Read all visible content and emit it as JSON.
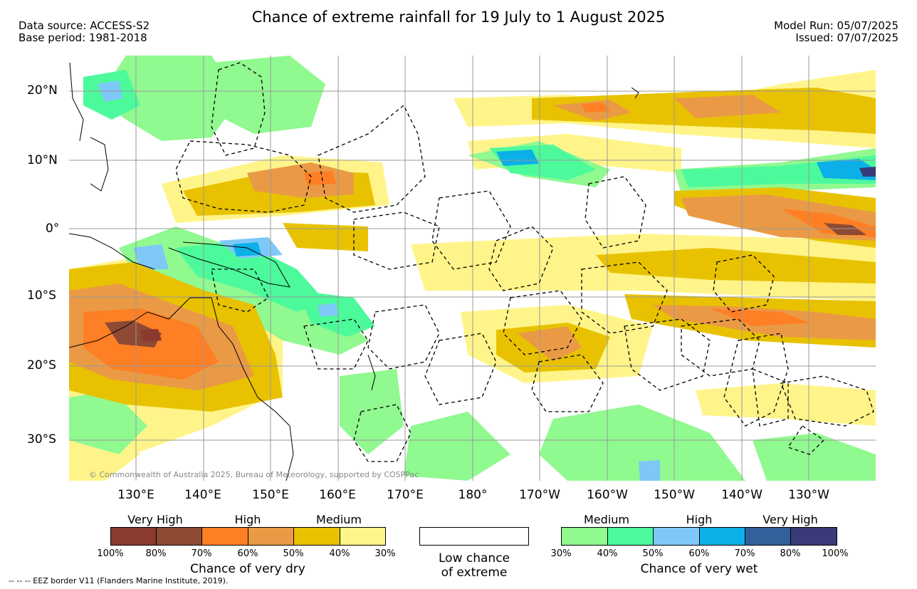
{
  "title": "Chance of extreme rainfall for 19 July to 1 August 2025",
  "header_left": {
    "source": "Data source: ACCESS-S2",
    "base": "Base period: 1981-2018"
  },
  "header_right": {
    "run": "Model Run: 05/07/2025",
    "issued": "Issued: 07/07/2025"
  },
  "map": {
    "lat_labels": [
      "20°N",
      "10°N",
      "0°",
      "10°S",
      "20°S",
      "30°S"
    ],
    "lon_labels": [
      "130°E",
      "140°E",
      "150°E",
      "160°E",
      "170°E",
      "180°",
      "170°W",
      "160°W",
      "150°W",
      "140°W",
      "130°W"
    ],
    "copyright": "© Commonwealth of Australia 2025, Bureau of Meteorology, supported by COSPPac"
  },
  "legend_dry": {
    "categories": [
      "Very High",
      "High",
      "Medium"
    ],
    "ticks": [
      "100%",
      "80%",
      "70%",
      "60%",
      "50%",
      "40%",
      "30%"
    ],
    "colors": [
      "#8b3a2f",
      "#8e4a33",
      "#ff7f24",
      "#ea9a45",
      "#e8c200",
      "#fff489"
    ],
    "caption": "Chance of very dry"
  },
  "legend_low": {
    "line1": "Low chance",
    "line2": "of extreme"
  },
  "legend_wet": {
    "categories": [
      "Medium",
      "High",
      "Very High"
    ],
    "ticks": [
      "30%",
      "40%",
      "50%",
      "60%",
      "70%",
      "80%",
      "100%"
    ],
    "colors": [
      "#90f990",
      "#4cfa9c",
      "#7ec8f8",
      "#0bb0e8",
      "#31609a",
      "#3a3a78"
    ],
    "caption": "Chance of very wet"
  },
  "footer": "--  --  -- EEZ border V11 (Flanders Marine Institute, 2019)."
}
